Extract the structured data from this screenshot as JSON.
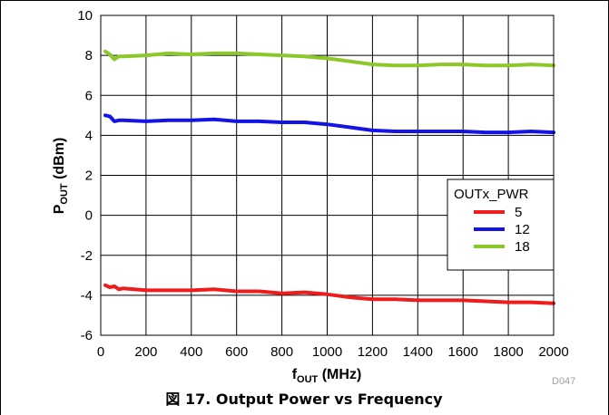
{
  "chart_data": {
    "type": "line",
    "title": "",
    "xlabel": "f",
    "xlabel_sub": "OUT",
    "xlabel_unit": " (MHz)",
    "ylabel": "P",
    "ylabel_sub": "OUT",
    "ylabel_unit": " (dBm)",
    "xlim": [
      0,
      2000
    ],
    "ylim": [
      -6,
      10
    ],
    "x_ticks": [
      0,
      200,
      400,
      600,
      800,
      1000,
      1200,
      1400,
      1600,
      1800,
      2000
    ],
    "y_ticks": [
      -6,
      -4,
      -2,
      0,
      2,
      4,
      6,
      8,
      10
    ],
    "grid": true,
    "legend": {
      "title": "OUTx_PWR",
      "placement": "right"
    },
    "series": [
      {
        "name": "5",
        "color": "#ee1c1c",
        "x": [
          20,
          40,
          60,
          80,
          100,
          200,
          300,
          400,
          500,
          600,
          700,
          800,
          900,
          1000,
          1100,
          1200,
          1300,
          1400,
          1500,
          1600,
          1700,
          1800,
          1900,
          2000
        ],
        "y": [
          -3.5,
          -3.6,
          -3.55,
          -3.7,
          -3.65,
          -3.75,
          -3.75,
          -3.75,
          -3.7,
          -3.8,
          -3.8,
          -3.9,
          -3.85,
          -3.95,
          -4.1,
          -4.2,
          -4.2,
          -4.25,
          -4.25,
          -4.25,
          -4.3,
          -4.35,
          -4.35,
          -4.4
        ]
      },
      {
        "name": "12",
        "color": "#1414e6",
        "x": [
          20,
          40,
          60,
          80,
          100,
          200,
          300,
          400,
          500,
          600,
          700,
          800,
          900,
          1000,
          1100,
          1200,
          1300,
          1400,
          1500,
          1600,
          1700,
          1800,
          1900,
          2000
        ],
        "y": [
          5.0,
          4.95,
          4.7,
          4.75,
          4.75,
          4.7,
          4.75,
          4.75,
          4.8,
          4.7,
          4.7,
          4.65,
          4.65,
          4.55,
          4.4,
          4.25,
          4.2,
          4.2,
          4.2,
          4.2,
          4.15,
          4.15,
          4.2,
          4.15
        ]
      },
      {
        "name": "18",
        "color": "#8cc82a",
        "x": [
          20,
          40,
          60,
          80,
          100,
          200,
          300,
          400,
          500,
          600,
          700,
          800,
          900,
          1000,
          1100,
          1200,
          1300,
          1400,
          1500,
          1600,
          1700,
          1800,
          1900,
          2000
        ],
        "y": [
          8.2,
          8.05,
          7.8,
          7.95,
          7.95,
          8.0,
          8.1,
          8.05,
          8.1,
          8.1,
          8.05,
          8.0,
          7.95,
          7.85,
          7.7,
          7.55,
          7.5,
          7.5,
          7.55,
          7.55,
          7.5,
          7.5,
          7.55,
          7.5
        ]
      }
    ]
  },
  "figure_id": "D047",
  "caption": "図 17. Output Power vs Frequency",
  "colors": {
    "grid": "#000000",
    "figure_id": "#a0a0a0"
  }
}
